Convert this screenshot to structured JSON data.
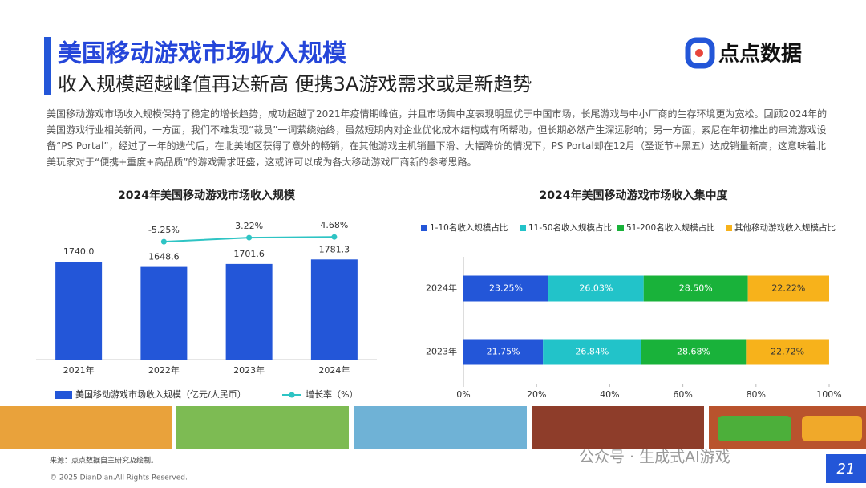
{
  "page": {
    "title": "美国移动游戏市场收入规模",
    "subtitle": "收入规模超越峰值再达新高 便携3A游戏需求或是新趋势",
    "paragraph": "美国移动游戏市场收入规模保持了稳定的增长趋势，成功超越了2021年疫情期峰值，并且市场集中度表现明显优于中国市场，长尾游戏与中小厂商的生存环境更为宽松。回顾2024年的美国游戏行业相关新闻，一方面，我们不难发现“裁员”一词萦绕始终，虽然短期内对企业优化成本结构或有所帮助，但长期必然产生深远影响；另一方面，索尼在年初推出的串流游戏设备“PS Portal”，经过了一年的迭代后，在北美地区获得了意外的畅销，在其他游戏主机销量下滑、大幅降价的情况下，PS Portal却在12月（圣诞节+黑五）达成销量新高，这意味着北美玩家对于“便携+重度+高品质”的游戏需求旺盛，这或许可以成为各大移动游戏厂商新的参考思路。",
    "logo": "点点数据",
    "source": "来源：点点数据自主研究及绘制。",
    "copyright": "© 2025 DianDian.All Rights Reserved.",
    "watermark": "公众号 · 生成式AI游戏",
    "page_number": "21"
  },
  "chart_data": [
    {
      "type": "bar_line",
      "title": "2024年美国移动游戏市场收入规模",
      "categories": [
        "2021年",
        "2022年",
        "2023年",
        "2024年"
      ],
      "series": [
        {
          "name": "美国移动游戏市场收入规模（亿元/人民币）",
          "color": "#2356d8",
          "values": [
            1740.0,
            1648.6,
            1701.6,
            1781.3
          ],
          "value_labels": [
            "1740.0",
            "1648.6",
            "1701.6",
            "1781.3"
          ]
        },
        {
          "name": "增长率（%）",
          "color": "#2ec4c4",
          "axis": "y2",
          "values": [
            null,
            -5.25,
            3.22,
            4.68
          ],
          "value_labels": [
            null,
            "-5.25%",
            "3.22%",
            "4.68%"
          ]
        }
      ],
      "ylim": [
        0,
        2400
      ],
      "y2lim": [
        -250,
        30
      ]
    },
    {
      "type": "stacked_barh",
      "title": "2024年美国移动游戏市场收入集中度",
      "categories": [
        "2024年",
        "2023年"
      ],
      "series": [
        {
          "name": "1-10名收入规模占比",
          "color": "#2356d8",
          "values": [
            23.25,
            21.75
          ],
          "value_labels": [
            "23.25%",
            "21.75%"
          ]
        },
        {
          "name": "11-50名收入规模占比",
          "color": "#22c3c9",
          "values": [
            26.03,
            26.84
          ],
          "value_labels": [
            "26.03%",
            "26.84%"
          ]
        },
        {
          "name": "51-200名收入规模占比",
          "color": "#19b23a",
          "values": [
            28.5,
            28.68
          ],
          "value_labels": [
            "28.50%",
            "28.68%"
          ]
        },
        {
          "name": "其他移动游戏收入规模占比",
          "color": "#f7b21b",
          "values": [
            22.22,
            22.72
          ],
          "value_labels": [
            "22.22%",
            "22.72%"
          ]
        }
      ],
      "xlim": [
        0,
        100
      ],
      "xticks": [
        {
          "value": 0,
          "label": "0%"
        },
        {
          "value": 20,
          "label": "20%"
        },
        {
          "value": 40,
          "label": "40%"
        },
        {
          "value": 60,
          "label": "60%"
        },
        {
          "value": 80,
          "label": "80%"
        },
        {
          "value": 100,
          "label": "100%"
        }
      ]
    }
  ]
}
